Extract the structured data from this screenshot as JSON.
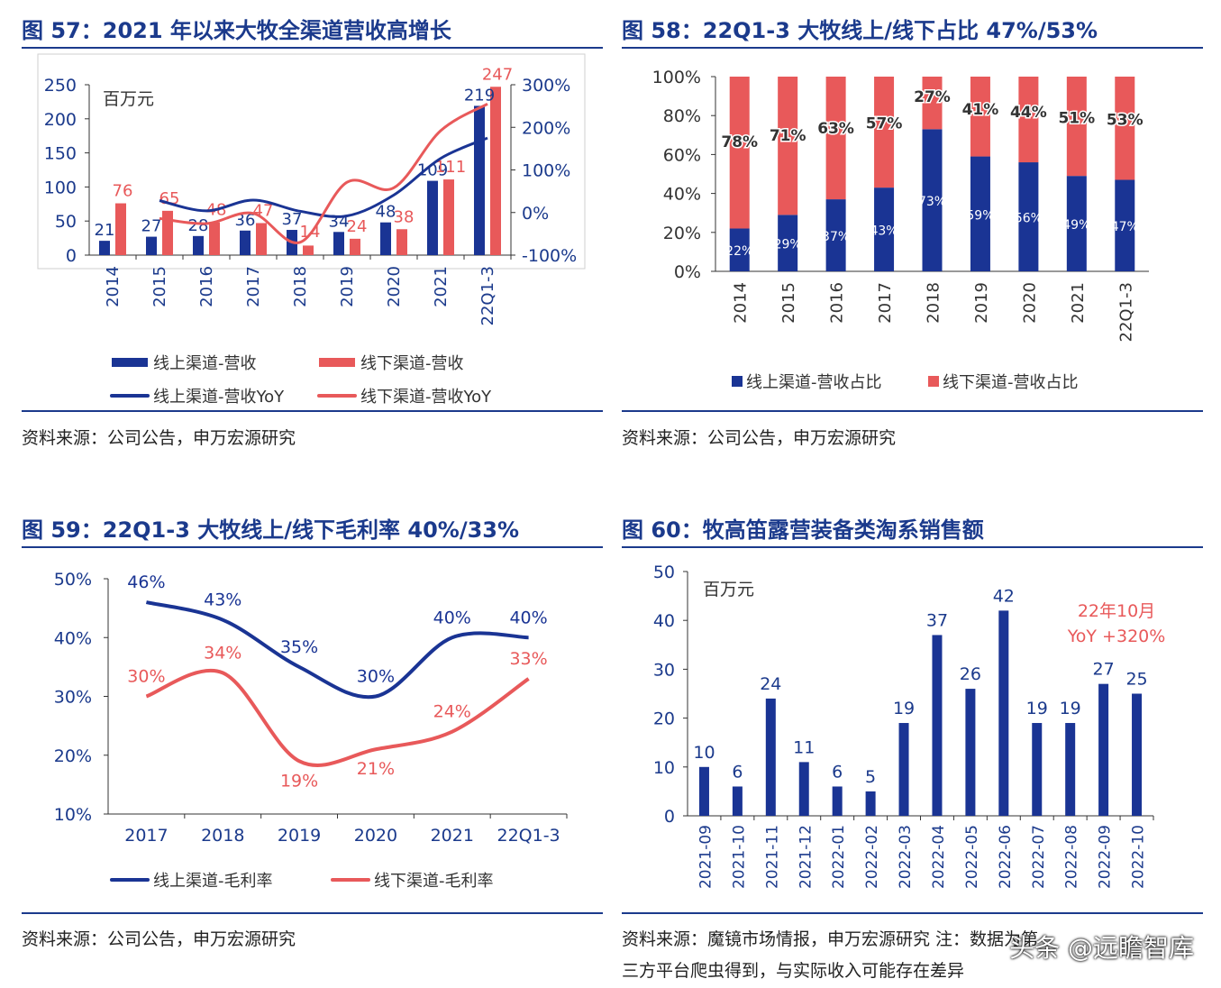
{
  "colors": {
    "online": "#1a3494",
    "offline": "#e8595a",
    "title": "#1b3a8c",
    "axis": "#333333"
  },
  "panels": [
    {
      "title": "图 57：2021 年以来大牧全渠道营收高增长",
      "source": "资料来源：公司公告，申万宏源研究"
    },
    {
      "title": "图 58：22Q1-3 大牧线上/线下占比 47%/53%",
      "source": "资料来源：公司公告，申万宏源研究"
    },
    {
      "title": "图 59：22Q1-3 大牧线上/线下毛利率 40%/33%",
      "source": "资料来源：公司公告，申万宏源研究"
    },
    {
      "title": "图 60：牧高笛露营装备类淘系销售额",
      "source": "资料来源：魔镜市场情报，申万宏源研究 注：数据为第",
      "source_line2": "三方平台爬虫得到，与实际收入可能存在差异"
    }
  ],
  "watermark": "头条 @远瞻智库",
  "chart_data": [
    {
      "type": "bar",
      "unit_label": "百万元",
      "categories": [
        "2014",
        "2015",
        "2016",
        "2017",
        "2018",
        "2019",
        "2020",
        "2021",
        "22Q1-3"
      ],
      "series": [
        {
          "name": "线上渠道-营收",
          "values": [
            21,
            27,
            28,
            36,
            37,
            34,
            48,
            109,
            219
          ]
        },
        {
          "name": "线下渠道-营收",
          "values": [
            76,
            65,
            48,
            47,
            14,
            24,
            38,
            111,
            247
          ]
        }
      ],
      "line_series": [
        {
          "name": "线上渠道-营收YoY",
          "values": [
            null,
            28,
            4,
            29,
            3,
            -8,
            41,
            127,
            175
          ]
        },
        {
          "name": "线下渠道-营收YoY",
          "values": [
            null,
            -14,
            -26,
            -2,
            -70,
            71,
            58,
            192,
            255
          ]
        }
      ],
      "y_left": {
        "ticks": [
          "0",
          "50",
          "100",
          "150",
          "200",
          "250"
        ],
        "ylim": [
          0,
          250
        ]
      },
      "y_right": {
        "ticks": [
          "-100%",
          "0%",
          "100%",
          "200%",
          "300%"
        ],
        "ylim": [
          -100,
          300
        ]
      },
      "data_labels": {
        "online": [
          "21",
          "27",
          "28",
          "36",
          "37",
          "34",
          "48",
          "109",
          "219"
        ],
        "offline": [
          "76",
          "65",
          "48",
          "47",
          "14",
          "24",
          "38",
          "111",
          "247"
        ]
      }
    },
    {
      "type": "bar",
      "stacked": true,
      "categories": [
        "2014",
        "2015",
        "2016",
        "2017",
        "2018",
        "2019",
        "2020",
        "2021",
        "22Q1-3"
      ],
      "series": [
        {
          "name": "线上渠道-营收占比",
          "values": [
            22,
            29,
            37,
            43,
            73,
            59,
            56,
            49,
            47
          ]
        },
        {
          "name": "线下渠道-营收占比",
          "values": [
            78,
            71,
            63,
            57,
            27,
            41,
            44,
            51,
            53
          ]
        }
      ],
      "y": {
        "ticks": [
          "0%",
          "20%",
          "40%",
          "60%",
          "80%",
          "100%"
        ],
        "ylim": [
          0,
          100
        ]
      },
      "data_labels": {
        "online": [
          "22%",
          "29%",
          "37%",
          "43%",
          "73%",
          "59%",
          "56%",
          "49%",
          "47%"
        ],
        "offline": [
          "78%",
          "71%",
          "63%",
          "57%",
          "27%",
          "41%",
          "44%",
          "51%",
          "53%"
        ]
      }
    },
    {
      "type": "line",
      "categories": [
        "2017",
        "2018",
        "2019",
        "2020",
        "2021",
        "22Q1-3"
      ],
      "series": [
        {
          "name": "线上渠道-毛利率",
          "values": [
            46,
            43,
            35,
            30,
            40,
            40
          ]
        },
        {
          "name": "线下渠道-毛利率",
          "values": [
            30,
            34,
            19,
            21,
            24,
            33
          ]
        }
      ],
      "y": {
        "ticks": [
          "10%",
          "20%",
          "30%",
          "40%",
          "50%"
        ],
        "ylim": [
          10,
          50
        ]
      },
      "data_labels": {
        "online": [
          "46%",
          "43%",
          "35%",
          "30%",
          "40%",
          "40%"
        ],
        "offline": [
          "30%",
          "34%",
          "19%",
          "21%",
          "24%",
          "33%"
        ]
      }
    },
    {
      "type": "bar",
      "unit_label": "百万元",
      "categories": [
        "2021-09",
        "2021-10",
        "2021-11",
        "2021-12",
        "2022-01",
        "2022-02",
        "2022-03",
        "2022-04",
        "2022-05",
        "2022-06",
        "2022-07",
        "2022-08",
        "2022-09",
        "2022-10"
      ],
      "values": [
        10,
        6,
        24,
        11,
        6,
        5,
        19,
        37,
        26,
        42,
        19,
        19,
        27,
        25
      ],
      "data_labels": [
        "10",
        "6",
        "24",
        "11",
        "6",
        "5",
        "19",
        "37",
        "26",
        "42",
        "19",
        "19",
        "27",
        "25"
      ],
      "y": {
        "ticks": [
          "0",
          "10",
          "20",
          "30",
          "40",
          "50"
        ],
        "ylim": [
          0,
          50
        ]
      },
      "annotation": [
        "22年10月",
        "YoY +320%"
      ]
    }
  ]
}
